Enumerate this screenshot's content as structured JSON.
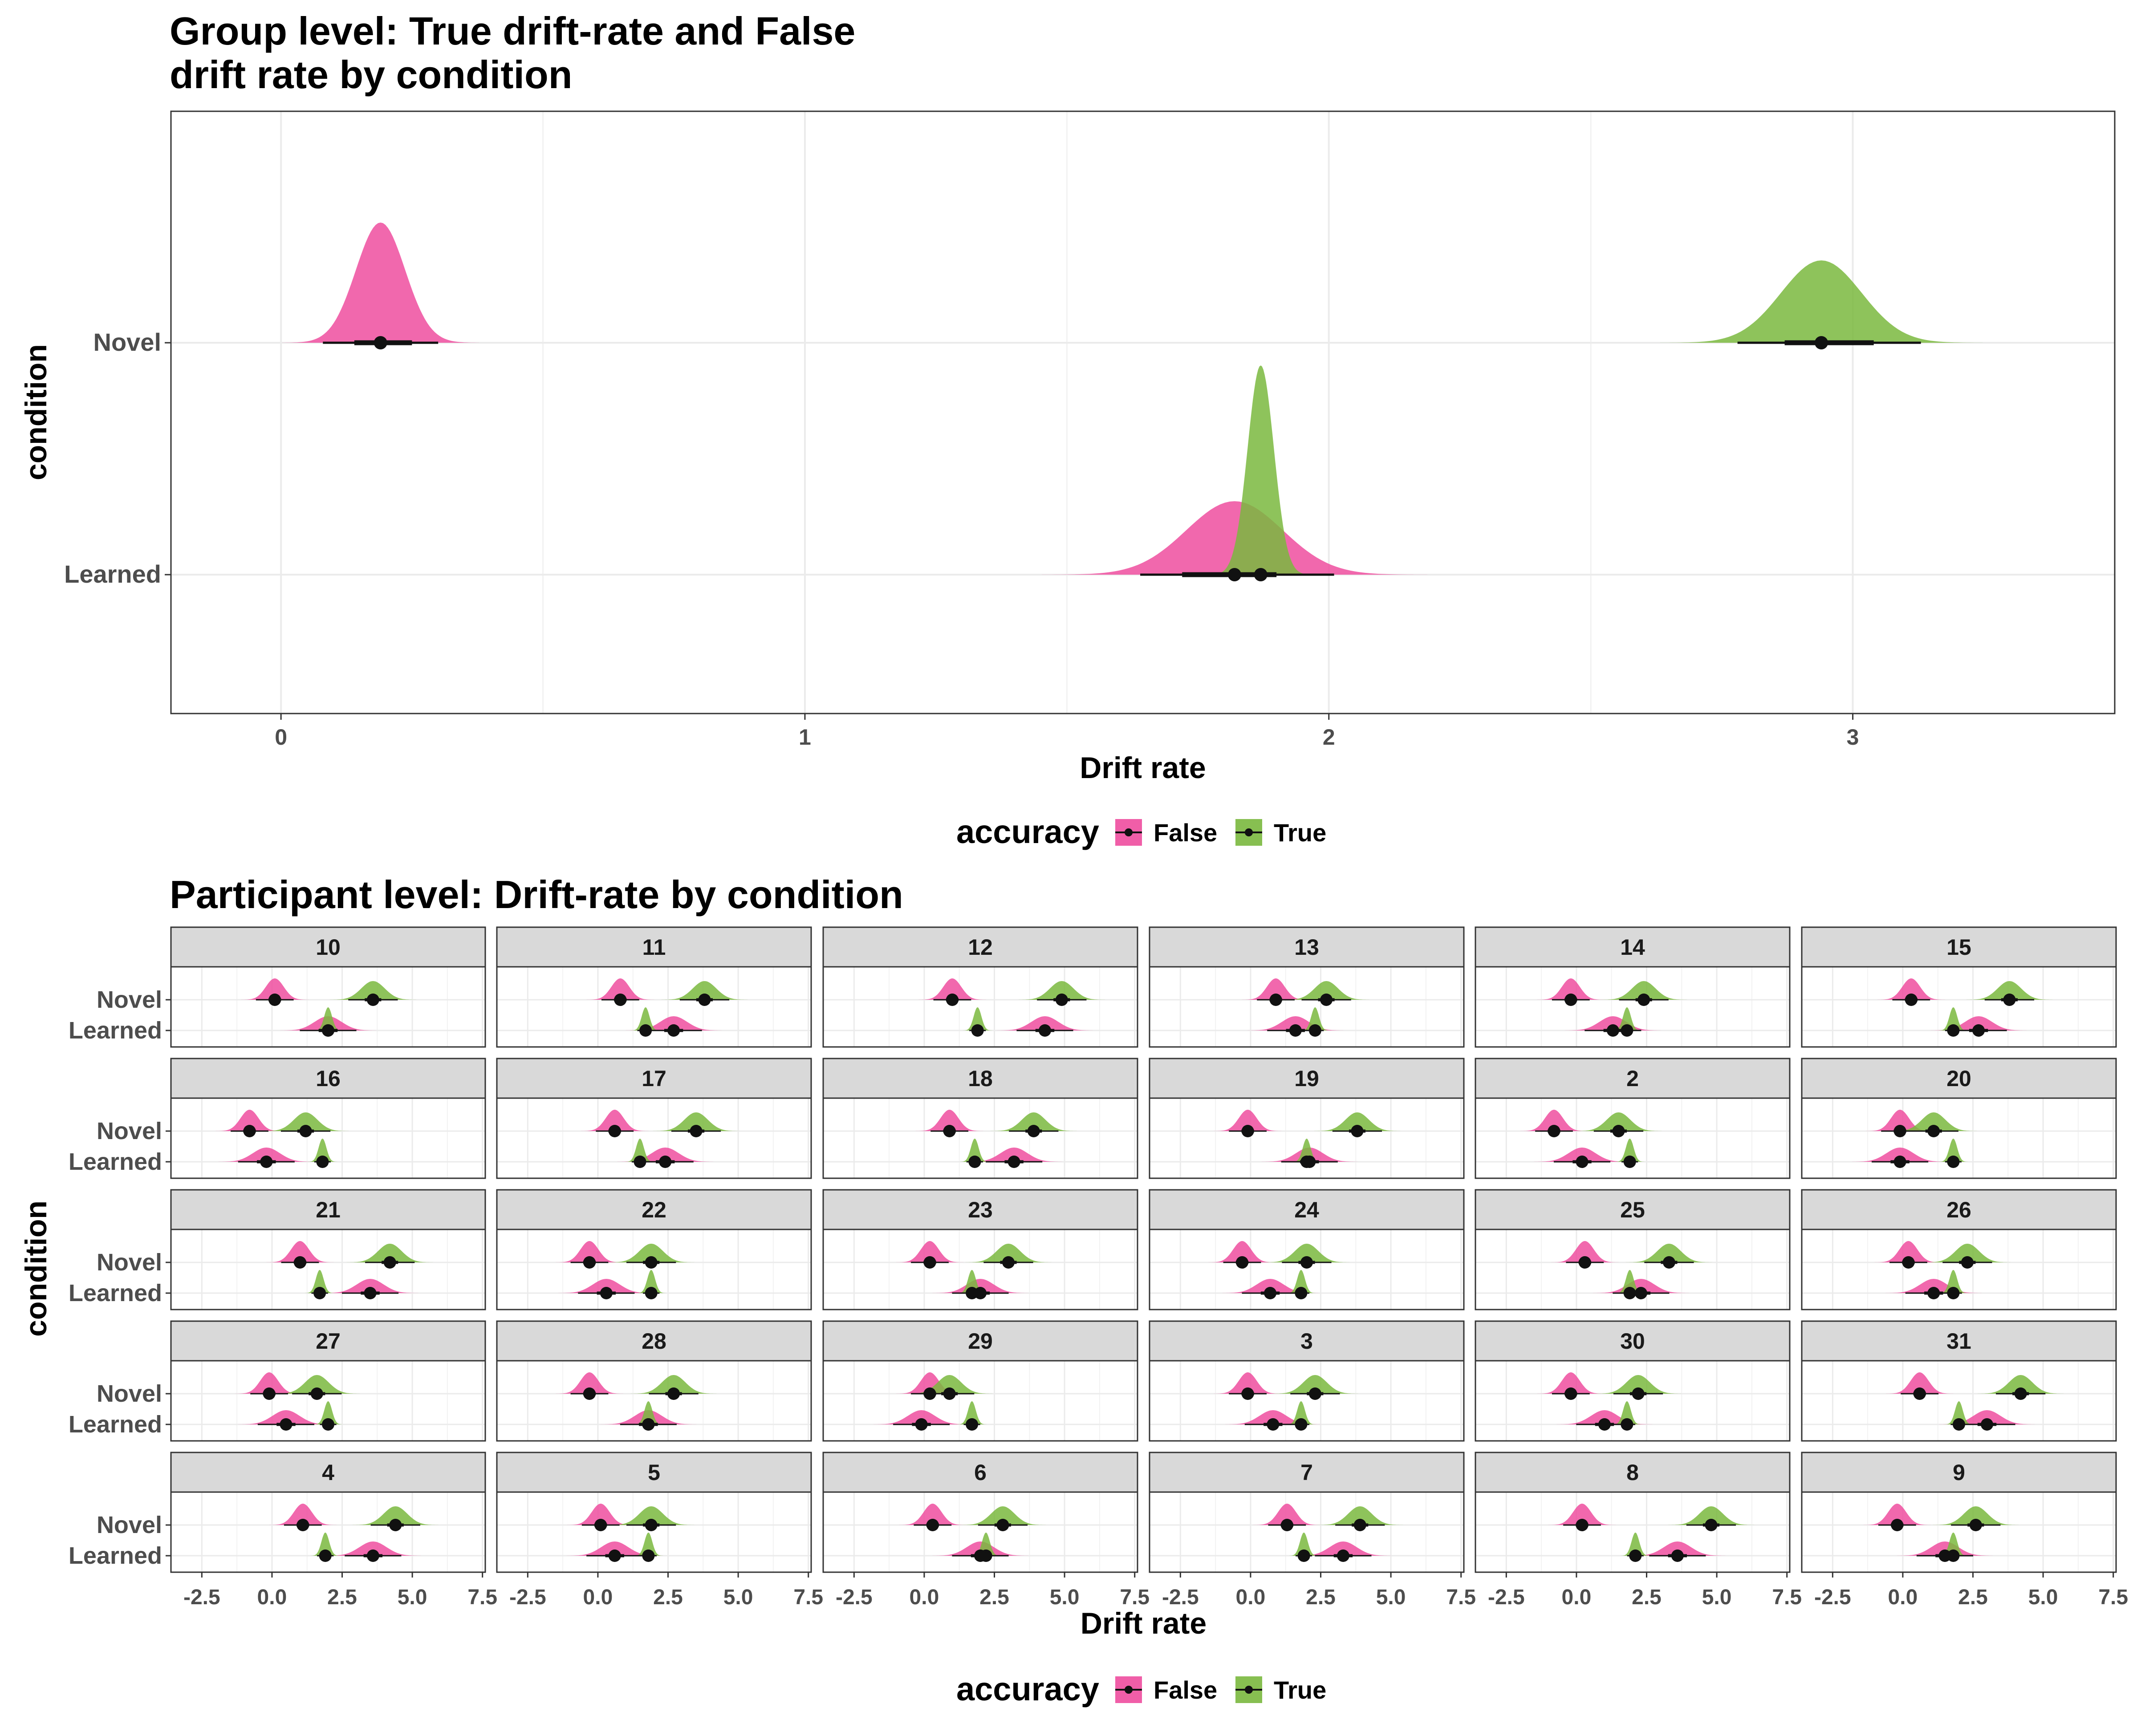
{
  "colors": {
    "false": "#EE4D9F",
    "true": "#7AB83E",
    "strip": "#D9D9D9",
    "grid": "#EBEBEB",
    "point": "#111111"
  },
  "chart_data": [
    {
      "type": "density-ridge",
      "title": "Group level: True drift-rate and False drift rate by condition",
      "title_lines": [
        "Group level: True drift-rate and False",
        "drift rate by condition"
      ],
      "xlabel": "Drift rate",
      "ylabel": "condition",
      "xlim": [
        -0.21,
        3.5
      ],
      "x_ticks": [
        "0",
        "1",
        "2",
        "3"
      ],
      "x_tick_values": [
        0,
        1,
        2,
        3
      ],
      "y_categories": [
        "Novel",
        "Learned"
      ],
      "grid": true,
      "legend": {
        "title": "accuracy",
        "position": "bottom",
        "entries": [
          "False",
          "True"
        ]
      },
      "series": [
        {
          "name": "False",
          "condition": "Novel",
          "mean": 0.19,
          "sd": 0.047,
          "ci50": [
            0.14,
            0.25
          ],
          "ci95": [
            0.08,
            0.3
          ]
        },
        {
          "name": "True",
          "condition": "Novel",
          "mean": 2.94,
          "sd": 0.077,
          "ci50": [
            2.87,
            3.04
          ],
          "ci95": [
            2.78,
            3.13
          ]
        },
        {
          "name": "False",
          "condition": "Learned",
          "mean": 1.82,
          "sd": 0.092,
          "ci50": [
            1.72,
            1.9
          ],
          "ci95": [
            1.64,
            2.01
          ]
        },
        {
          "name": "True",
          "condition": "Learned",
          "mean": 1.87,
          "sd": 0.025,
          "ci50": [
            1.84,
            1.9
          ],
          "ci95": [
            1.81,
            1.93
          ]
        }
      ]
    },
    {
      "type": "density-ridge-facets",
      "title": "Participant level: Drift-rate by condition",
      "xlabel": "Drift rate",
      "ylabel": "condition",
      "xlim": [
        -3.6,
        7.6
      ],
      "x_ticks": [
        "-2.5",
        "0.0",
        "2.5",
        "5.0",
        "7.5"
      ],
      "x_tick_values": [
        -2.5,
        0,
        2.5,
        5,
        7.5
      ],
      "y_categories": [
        "Novel",
        "Learned"
      ],
      "grid": true,
      "legend": {
        "title": "accuracy",
        "position": "bottom",
        "entries": [
          "False",
          "True"
        ]
      },
      "panels": [
        {
          "label": "10",
          "novel_false": 0.1,
          "novel_true": 3.6,
          "learned_false": 2.0,
          "learned_true": 2.0
        },
        {
          "label": "11",
          "novel_false": 0.8,
          "novel_true": 3.8,
          "learned_false": 2.7,
          "learned_true": 1.7
        },
        {
          "label": "12",
          "novel_false": 1.0,
          "novel_true": 4.9,
          "learned_false": 4.3,
          "learned_true": 1.9
        },
        {
          "label": "13",
          "novel_false": 0.9,
          "novel_true": 2.7,
          "learned_false": 1.6,
          "learned_true": 2.3
        },
        {
          "label": "14",
          "novel_false": -0.2,
          "novel_true": 2.4,
          "learned_false": 1.3,
          "learned_true": 1.8
        },
        {
          "label": "15",
          "novel_false": 0.3,
          "novel_true": 3.8,
          "learned_false": 2.7,
          "learned_true": 1.8
        },
        {
          "label": "16",
          "novel_false": -0.8,
          "novel_true": 1.2,
          "learned_false": -0.2,
          "learned_true": 1.8
        },
        {
          "label": "17",
          "novel_false": 0.6,
          "novel_true": 3.5,
          "learned_false": 2.4,
          "learned_true": 1.5
        },
        {
          "label": "18",
          "novel_false": 0.9,
          "novel_true": 3.9,
          "learned_false": 3.2,
          "learned_true": 1.8
        },
        {
          "label": "19",
          "novel_false": -0.1,
          "novel_true": 3.8,
          "learned_false": 2.1,
          "learned_true": 2.0
        },
        {
          "label": "2",
          "novel_false": -0.8,
          "novel_true": 1.5,
          "learned_false": 0.2,
          "learned_true": 1.9
        },
        {
          "label": "20",
          "novel_false": -0.1,
          "novel_true": 1.1,
          "learned_false": -0.1,
          "learned_true": 1.8
        },
        {
          "label": "21",
          "novel_false": 1.0,
          "novel_true": 4.2,
          "learned_false": 3.5,
          "learned_true": 1.7
        },
        {
          "label": "22",
          "novel_false": -0.3,
          "novel_true": 1.9,
          "learned_false": 0.3,
          "learned_true": 1.9
        },
        {
          "label": "23",
          "novel_false": 0.2,
          "novel_true": 3.0,
          "learned_false": 2.0,
          "learned_true": 1.7
        },
        {
          "label": "24",
          "novel_false": -0.3,
          "novel_true": 2.0,
          "learned_false": 0.7,
          "learned_true": 1.8
        },
        {
          "label": "25",
          "novel_false": 0.3,
          "novel_true": 3.3,
          "learned_false": 2.3,
          "learned_true": 1.9
        },
        {
          "label": "26",
          "novel_false": 0.2,
          "novel_true": 2.3,
          "learned_false": 1.1,
          "learned_true": 1.8
        },
        {
          "label": "27",
          "novel_false": -0.1,
          "novel_true": 1.6,
          "learned_false": 0.5,
          "learned_true": 2.0
        },
        {
          "label": "28",
          "novel_false": -0.3,
          "novel_true": 2.7,
          "learned_false": 1.8,
          "learned_true": 1.8
        },
        {
          "label": "29",
          "novel_false": 0.2,
          "novel_true": 0.9,
          "learned_false": -0.1,
          "learned_true": 1.7
        },
        {
          "label": "3",
          "novel_false": -0.1,
          "novel_true": 2.3,
          "learned_false": 0.8,
          "learned_true": 1.8
        },
        {
          "label": "30",
          "novel_false": -0.2,
          "novel_true": 2.2,
          "learned_false": 1.0,
          "learned_true": 1.8
        },
        {
          "label": "31",
          "novel_false": 0.6,
          "novel_true": 4.2,
          "learned_false": 3.0,
          "learned_true": 2.0
        },
        {
          "label": "4",
          "novel_false": 1.1,
          "novel_true": 4.4,
          "learned_false": 3.6,
          "learned_true": 1.9
        },
        {
          "label": "5",
          "novel_false": 0.1,
          "novel_true": 1.9,
          "learned_false": 0.6,
          "learned_true": 1.8
        },
        {
          "label": "6",
          "novel_false": 0.3,
          "novel_true": 2.8,
          "learned_false": 2.0,
          "learned_true": 2.2
        },
        {
          "label": "7",
          "novel_false": 1.3,
          "novel_true": 3.9,
          "learned_false": 3.3,
          "learned_true": 1.9
        },
        {
          "label": "8",
          "novel_false": 0.2,
          "novel_true": 4.8,
          "learned_false": 3.6,
          "learned_true": 2.1
        },
        {
          "label": "9",
          "novel_false": -0.2,
          "novel_true": 2.6,
          "learned_false": 1.5,
          "learned_true": 1.8
        }
      ]
    }
  ]
}
